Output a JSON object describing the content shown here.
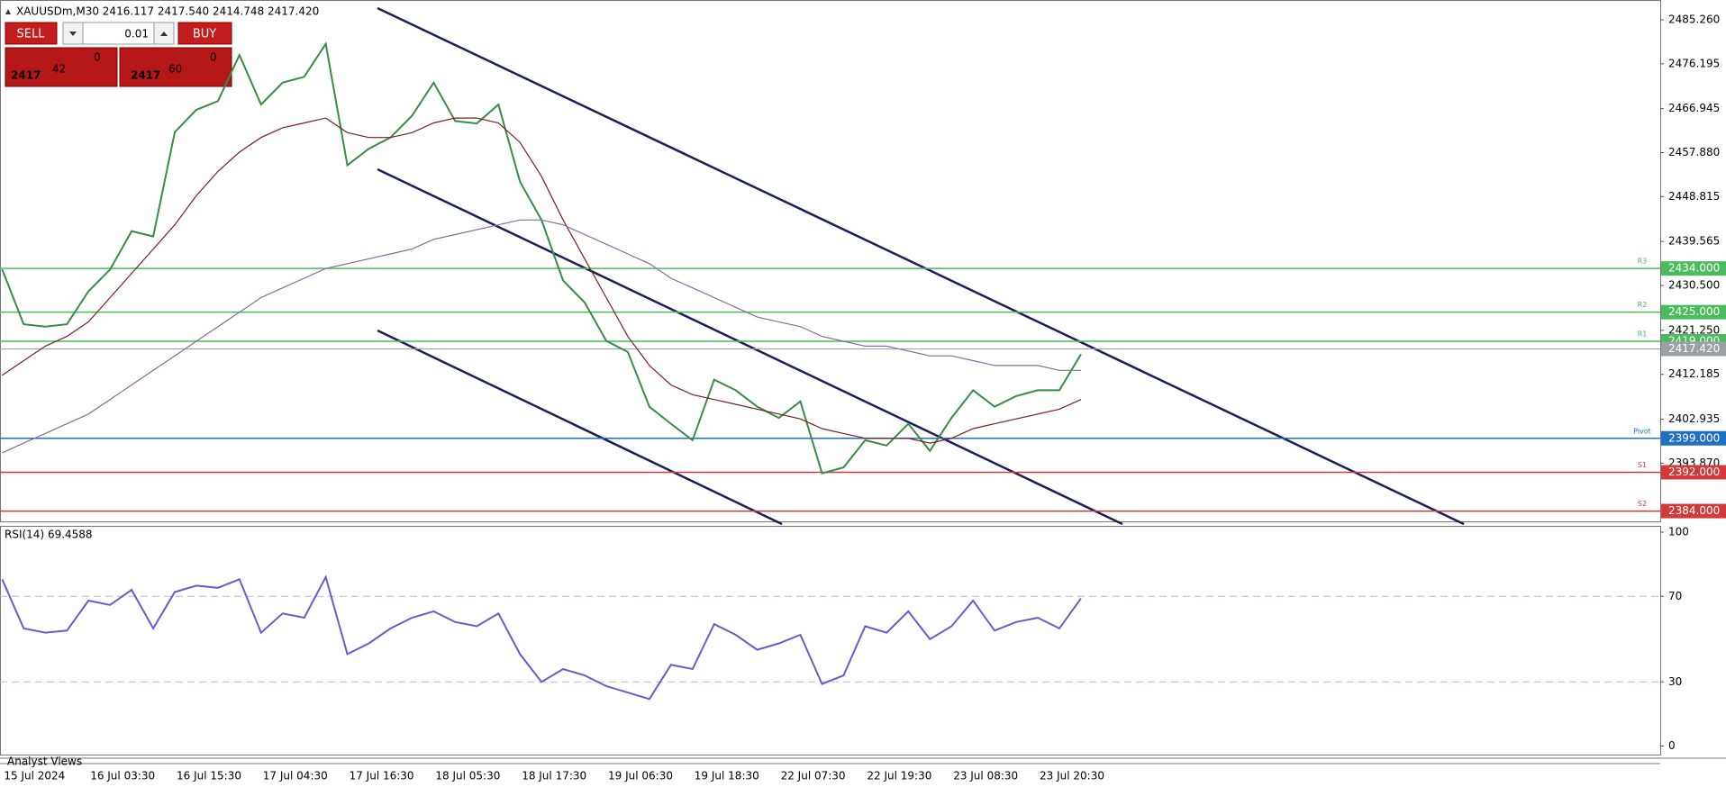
{
  "header": {
    "text": "XAUUSDm,M30 2416.117 2417.540 2414.748 2417.420"
  },
  "trade_panel": {
    "sell": "SELL",
    "buy": "BUY",
    "volume": "0.01",
    "bid_big": "2417",
    "bid_digits": "42",
    "bid_sup": "0",
    "ask_big": "2417",
    "ask_digits": "60",
    "ask_sup": "0"
  },
  "footer_tab": "Analyst Views",
  "chart_data": [
    {
      "type": "line",
      "categories": [
        "15 Jul 2024",
        null,
        null,
        null,
        "16 Jul 03:30",
        null,
        null,
        null,
        "16 Jul 15:30",
        null,
        null,
        null,
        "17 Jul 04:30",
        null,
        null,
        null,
        "17 Jul 16:30",
        null,
        null,
        null,
        "18 Jul 05:30",
        null,
        null,
        null,
        "18 Jul 17:30",
        null,
        null,
        null,
        "19 Jul 06:30",
        null,
        null,
        null,
        "19 Jul 18:30",
        null,
        null,
        null,
        "22 Jul 07:30",
        null,
        null,
        null,
        "22 Jul 19:30",
        null,
        null,
        null,
        "23 Jul 08:30",
        null,
        null,
        null,
        "23 Jul 20:30",
        null,
        null
      ],
      "series": [
        {
          "color": "#3a8a4a",
          "values": [
            2433.8,
            2422.5,
            2422.0,
            2422.5,
            2429.3,
            2433.8,
            2441.7,
            2440.6,
            2462.1,
            2466.7,
            2468.5,
            2478.0,
            2467.8,
            2472.3,
            2473.5,
            2480.3,
            2455.3,
            2458.7,
            2461.0,
            2465.5,
            2472.3,
            2464.4,
            2463.9,
            2467.8,
            2451.9,
            2444.0,
            2431.5,
            2427.0,
            2419.1,
            2416.8,
            2405.5,
            2402.0,
            2398.6,
            2411.1,
            2408.9,
            2405.5,
            2403.2,
            2406.6,
            2391.8,
            2393.0,
            2398.6,
            2397.5,
            2402.0,
            2396.4,
            2403.2,
            2408.9,
            2405.5,
            2407.7,
            2408.9,
            2408.9,
            2416.3
          ]
        },
        {
          "color": "#7a1f1f",
          "values": [
            2412,
            2415,
            2418,
            2420,
            2423,
            2428,
            2433,
            2438,
            2443,
            2449,
            2454,
            2458,
            2461,
            2463,
            2464,
            2465,
            2462,
            2461,
            2461,
            2462,
            2464,
            2465,
            2465,
            2464,
            2460,
            2453,
            2444,
            2436,
            2428,
            2420,
            2414,
            2410,
            2408,
            2407,
            2406,
            2405,
            2404,
            2403,
            2401,
            2400,
            2399,
            2399,
            2399,
            2398,
            2399,
            2401,
            2402,
            2403,
            2404,
            2405,
            2407
          ]
        },
        {
          "color": "#8a6a9a",
          "values": [
            2396,
            2398,
            2400,
            2402,
            2404,
            2407,
            2410,
            2413,
            2416,
            2419,
            2422,
            2425,
            2428,
            2430,
            2432,
            2434,
            2435,
            2436,
            2437,
            2438,
            2440,
            2441,
            2442,
            2443,
            2444,
            2444,
            2443,
            2441,
            2439,
            2437,
            2435,
            2432,
            2430,
            2428,
            2426,
            2424,
            2423,
            2422,
            2420,
            2419,
            2418,
            2418,
            2417,
            2416,
            2416,
            2415,
            2414,
            2414,
            2414,
            2413,
            2413
          ]
        }
      ],
      "ylim": [
        2381.88,
        2489.34
      ],
      "yticks": [
        {
          "value": 2393.87,
          "label": "2393.870"
        },
        {
          "value": 2402.935,
          "label": "2402.935"
        },
        {
          "value": 2412.185,
          "label": "2412.185"
        },
        {
          "value": 2421.25,
          "label": "2421.250"
        },
        {
          "value": 2430.5,
          "label": "2430.500"
        },
        {
          "value": 2439.565,
          "label": "2439.565"
        },
        {
          "value": 2448.815,
          "label": "2448.815"
        },
        {
          "value": 2457.88,
          "label": "2457.880"
        },
        {
          "value": 2466.945,
          "label": "2466.945"
        },
        {
          "value": 2476.195,
          "label": "2476.195"
        },
        {
          "value": 2485.26,
          "label": "2485.260"
        }
      ],
      "levels": {
        "names": [
          "R3",
          "R2",
          "R1",
          "Pivot",
          "S1",
          "S2"
        ],
        "values": [
          2434,
          2425,
          2419,
          2399,
          2392,
          2384
        ],
        "value_labels": [
          "2434.000",
          "2425.000",
          "2419.000",
          "2399.000",
          "2392.000",
          "2384.000"
        ],
        "colors": [
          "#4cbb5c",
          "#4cbb5c",
          "#4cbb5c",
          "#1f6fc5",
          "#d23a3a",
          "#d23a3a"
        ]
      },
      "current": {
        "value": 2417.42,
        "label": "2417.420",
        "color": "#9aa0a6"
      }
    },
    {
      "type": "line",
      "title": "RSI(14) 69.4588",
      "series": [
        {
          "color": "#6a5acd",
          "values": [
            78,
            55,
            53,
            54,
            68,
            66,
            73,
            55,
            72,
            75,
            74,
            78,
            53,
            62,
            60,
            79,
            43,
            48,
            55,
            60,
            63,
            58,
            56,
            62,
            43,
            30,
            36,
            33,
            28,
            25,
            22,
            38,
            36,
            57,
            52,
            45,
            48,
            52,
            29,
            33,
            56,
            53,
            63,
            50,
            56,
            68,
            54,
            58,
            60,
            55,
            69
          ]
        }
      ],
      "ylim": [
        0,
        100
      ],
      "yticks": [
        0,
        30,
        70,
        100
      ],
      "levels": [
        30,
        70
      ]
    }
  ]
}
